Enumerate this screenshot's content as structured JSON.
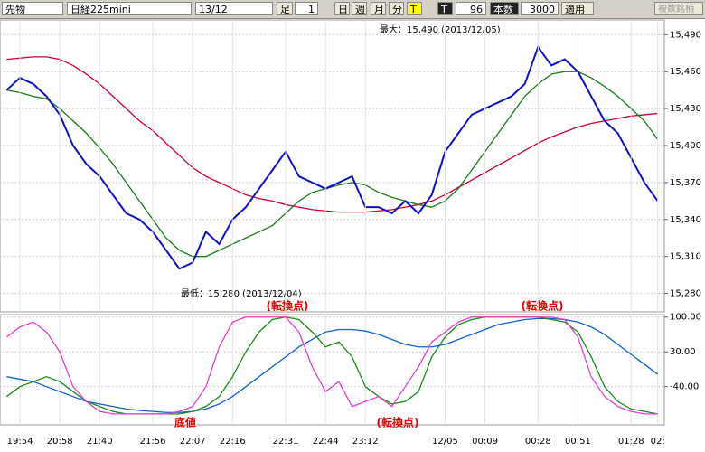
{
  "toolbar": {
    "market": "先物",
    "symbol": "日経225mini",
    "contract": "13/12",
    "bar_label": "足",
    "bar_size": "1",
    "day": "日",
    "week": "週",
    "month": "月",
    "minute": "分",
    "tick": "T",
    "tick2": "T",
    "count_small": "96",
    "count_label": "本数",
    "count": "3000",
    "apply": "適用",
    "multi": "複数銘柄"
  },
  "chart_data": [
    {
      "type": "line",
      "ylim": [
        15265,
        15502
      ],
      "yticks": [
        {
          "value": 15490,
          "label": "15,490"
        },
        {
          "value": 15460,
          "label": "15,460"
        },
        {
          "value": 15430,
          "label": "15,430"
        },
        {
          "value": 15400,
          "label": "15,400"
        },
        {
          "value": 15370,
          "label": "15,370"
        },
        {
          "value": 15340,
          "label": "15,340"
        },
        {
          "value": 15310,
          "label": "15,310"
        },
        {
          "value": 15280,
          "label": "15,280"
        }
      ],
      "grid": true,
      "annotations": [
        "最大：15,490 (2013/12/05)",
        "最低：15,280 (2013/12/04)",
        "(転換点)",
        "(転換点)"
      ],
      "series": [
        {
          "color": "#cc0033",
          "values": [
            15470,
            15471,
            15472,
            15472,
            15470,
            15465,
            15458,
            15450,
            15440,
            15430,
            15420,
            15412,
            15402,
            15392,
            15382,
            15375,
            15370,
            15365,
            15360,
            15357,
            15355,
            15352,
            15350,
            15348,
            15347,
            15346,
            15346,
            15346,
            15347,
            15348,
            15350,
            15352,
            15355,
            15360,
            15366,
            15372,
            15378,
            15384,
            15390,
            15396,
            15402,
            15407,
            15411,
            15415,
            15418,
            15420,
            15422,
            15424,
            15425,
            15426
          ]
        },
        {
          "color": "#1a7a1a",
          "values": [
            15445,
            15443,
            15440,
            15438,
            15430,
            15420,
            15410,
            15398,
            15385,
            15370,
            15355,
            15340,
            15325,
            15315,
            15310,
            15310,
            15315,
            15320,
            15325,
            15330,
            15335,
            15345,
            15355,
            15362,
            15365,
            15368,
            15370,
            15368,
            15362,
            15358,
            15355,
            15352,
            15350,
            15355,
            15365,
            15380,
            15395,
            15410,
            15425,
            15440,
            15450,
            15458,
            15460,
            15460,
            15455,
            15448,
            15440,
            15430,
            15420,
            15405
          ]
        },
        {
          "color": "#1010cc",
          "values": [
            15445,
            15455,
            15450,
            15440,
            15425,
            15400,
            15385,
            15375,
            15360,
            15345,
            15340,
            15330,
            15315,
            15300,
            15305,
            15330,
            15320,
            15340,
            15350,
            15365,
            15380,
            15395,
            15375,
            15370,
            15365,
            15370,
            15375,
            15350,
            15350,
            15345,
            15355,
            15345,
            15360,
            15395,
            15410,
            15425,
            15430,
            15435,
            15440,
            15450,
            15480,
            15465,
            15470,
            15460,
            15440,
            15420,
            15410,
            15390,
            15370,
            15355
          ]
        }
      ]
    },
    {
      "type": "line",
      "ylim": [
        -117,
        105
      ],
      "yticks": [
        {
          "value": 100,
          "label": "100.00"
        },
        {
          "value": 30,
          "label": "30.00"
        },
        {
          "value": -40,
          "label": "-40.00"
        }
      ],
      "grid": true,
      "annotations": [
        "底値",
        "(転換点)"
      ],
      "categories": [
        null,
        "19:54",
        null,
        null,
        "20:58",
        null,
        null,
        "21:40",
        null,
        null,
        null,
        "21:56",
        null,
        null,
        "22:07",
        null,
        null,
        "22:16",
        null,
        null,
        null,
        "22:31",
        null,
        null,
        "22:44",
        null,
        null,
        "23:12",
        null,
        null,
        null,
        null,
        null,
        "12/05",
        null,
        null,
        "00:09",
        null,
        null,
        null,
        "00:28",
        null,
        null,
        "00:51",
        null,
        null,
        null,
        "01:28",
        null,
        "02:"
      ],
      "series": [
        {
          "color": "#1060d0",
          "values": [
            -20,
            -25,
            -30,
            -40,
            -50,
            -60,
            -70,
            -75,
            -80,
            -85,
            -88,
            -90,
            -92,
            -92,
            -90,
            -85,
            -75,
            -60,
            -40,
            -20,
            0,
            20,
            40,
            55,
            70,
            75,
            75,
            72,
            65,
            55,
            45,
            40,
            40,
            45,
            55,
            65,
            75,
            85,
            90,
            95,
            97,
            97,
            95,
            90,
            80,
            65,
            45,
            25,
            5,
            -15
          ]
        },
        {
          "color": "#1a8a1a",
          "values": [
            -60,
            -40,
            -30,
            -20,
            -30,
            -50,
            -70,
            -80,
            -90,
            -95,
            -95,
            -95,
            -95,
            -95,
            -90,
            -80,
            -60,
            -20,
            30,
            70,
            95,
            100,
            95,
            70,
            40,
            50,
            20,
            -40,
            -60,
            -75,
            -70,
            -50,
            20,
            60,
            85,
            95,
            100,
            100,
            100,
            100,
            100,
            95,
            90,
            70,
            20,
            -40,
            -70,
            -85,
            -90,
            -95
          ]
        },
        {
          "color": "#e040d0",
          "values": [
            60,
            80,
            90,
            70,
            30,
            -40,
            -70,
            -90,
            -95,
            -95,
            -95,
            -95,
            -95,
            -90,
            -80,
            -40,
            40,
            90,
            100,
            100,
            100,
            100,
            70,
            0,
            -50,
            -30,
            -80,
            -70,
            -60,
            -80,
            -40,
            0,
            50,
            70,
            90,
            100,
            100,
            100,
            100,
            100,
            100,
            100,
            95,
            60,
            -20,
            -60,
            -80,
            -90,
            -95,
            -95
          ]
        }
      ]
    }
  ]
}
